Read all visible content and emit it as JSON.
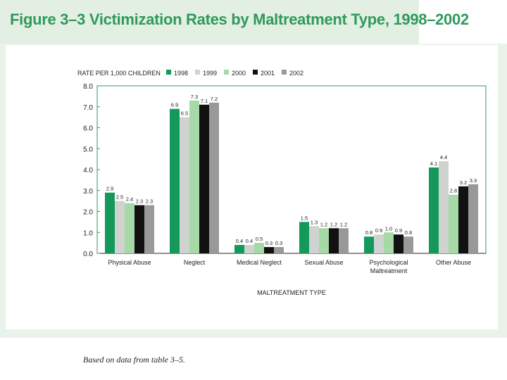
{
  "figure_title": "Figure 3–3 Victimization Rates by Maltreatment Type, 1998–2002",
  "note": "Based on data from table 3–5.",
  "colors": {
    "1998": "#14995a",
    "1999": "#cfd3cf",
    "2000": "#a6d8a8",
    "2001": "#111111",
    "2002": "#999999"
  },
  "chart_data": {
    "type": "bar",
    "title": "",
    "ylabel": "RATE PER 1,000 CHILDREN",
    "xlabel": "MALTREATMENT TYPE",
    "ylim": [
      0,
      8
    ],
    "yticks": [
      "0.0",
      "1.0",
      "2.0",
      "3.0",
      "4.0",
      "5.0",
      "6.0",
      "7.0",
      "8.0"
    ],
    "legend_position": "top",
    "grid": false,
    "categories": [
      "Physical Abuse",
      "Neglect",
      "Medical Neglect",
      "Sexual Abuse",
      "Psychological\nMaltreatment",
      "Other Abuse"
    ],
    "series": [
      {
        "name": "1998",
        "values": [
          2.9,
          6.9,
          0.4,
          1.5,
          0.8,
          4.1
        ],
        "labels": [
          "2.9",
          "6.9",
          "0.4",
          "1.5",
          "0.8",
          "4.1"
        ]
      },
      {
        "name": "1999",
        "values": [
          2.5,
          6.5,
          0.4,
          1.3,
          0.9,
          4.4
        ],
        "labels": [
          "2.5",
          "6.5",
          "0.4",
          "1.3",
          "0.9",
          "4.4"
        ]
      },
      {
        "name": "2000",
        "values": [
          2.4,
          7.3,
          0.5,
          1.2,
          1.0,
          2.8
        ],
        "labels": [
          "2.4",
          "7.3",
          "0.5",
          "1.2",
          "1.0",
          "2.8"
        ]
      },
      {
        "name": "2001",
        "values": [
          2.3,
          7.1,
          0.3,
          1.2,
          0.9,
          3.2
        ],
        "labels": [
          "2.3",
          "7.1",
          "0.3",
          "1.2",
          "0.9",
          "3.2"
        ]
      },
      {
        "name": "2002",
        "values": [
          2.3,
          7.2,
          0.3,
          1.2,
          0.8,
          3.3
        ],
        "labels": [
          "2.3",
          "7.2",
          "0.3",
          "1.2",
          "0.8",
          "3.3"
        ]
      }
    ]
  }
}
